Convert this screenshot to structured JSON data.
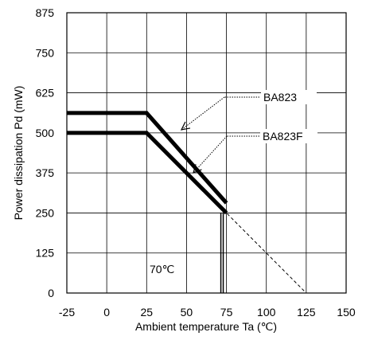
{
  "chart_data": {
    "type": "line",
    "xlabel": "Ambient temperature  Ta  (℃)",
    "ylabel": "Power dissipation  Pd   (mW)",
    "xlim": [
      -25,
      150
    ],
    "ylim": [
      0,
      875
    ],
    "x_ticks": [
      "-25",
      "0",
      "25",
      "50",
      "75",
      "100",
      "125",
      "150"
    ],
    "y_ticks": [
      "0",
      "125",
      "250",
      "375",
      "500",
      "625",
      "750",
      "875"
    ],
    "grid": true,
    "series": [
      {
        "name": "BA823",
        "points": [
          [
            -25,
            562
          ],
          [
            25,
            562
          ],
          [
            75,
            281
          ]
        ]
      },
      {
        "name": "BA823F",
        "points": [
          [
            -25,
            500
          ],
          [
            25,
            500
          ],
          [
            75,
            250
          ]
        ]
      }
    ],
    "dashed_extension": {
      "points": [
        [
          73,
          260
        ],
        [
          125,
          0
        ]
      ]
    },
    "vertical_marker": {
      "x": 72,
      "label": "70℃"
    }
  }
}
